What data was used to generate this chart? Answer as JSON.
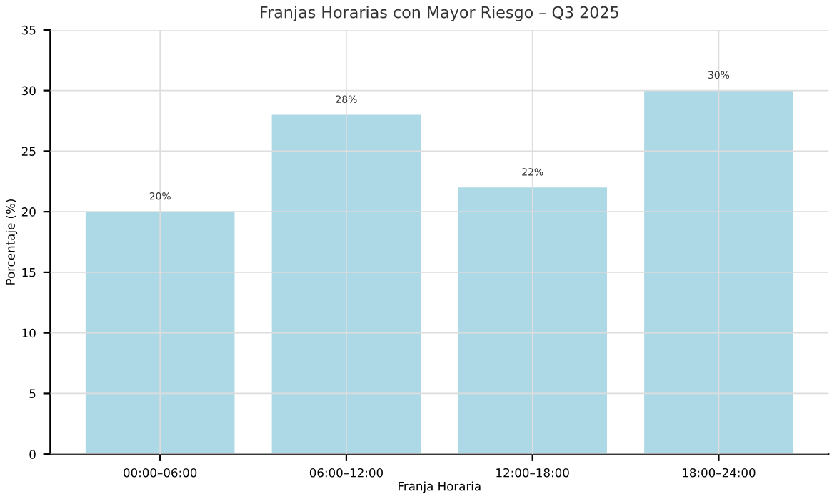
{
  "chart_data": {
    "type": "bar",
    "title": "Franjas Horarias con Mayor Riesgo – Q3 2025",
    "xlabel": "Franja Horaria",
    "ylabel": "Porcentaje (%)",
    "categories": [
      "00:00–06:00",
      "06:00–12:00",
      "12:00–18:00",
      "18:00–24:00"
    ],
    "values": [
      20,
      28,
      22,
      30
    ],
    "value_labels": [
      "20%",
      "28%",
      "22%",
      "30%"
    ],
    "color": "#add8e6",
    "ylim": [
      0,
      35
    ],
    "yticks": [
      0,
      5,
      10,
      15,
      20,
      25,
      30,
      35
    ],
    "grid": true
  }
}
